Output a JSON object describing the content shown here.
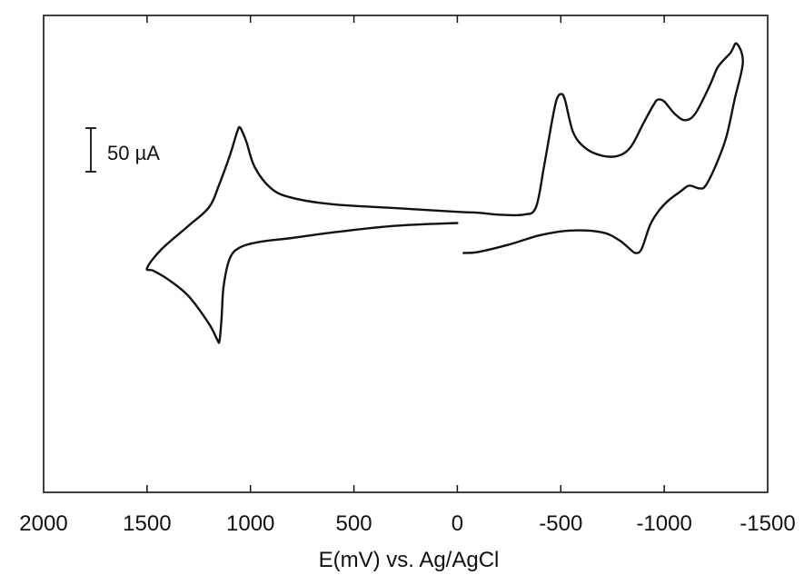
{
  "chart_data": {
    "type": "line",
    "title": "",
    "xlabel": "E(mV) vs. Ag/AgCl",
    "ylabel": "",
    "x_axis_reversed": true,
    "xlim": [
      2000,
      -1500
    ],
    "ylim": [
      -280,
      230
    ],
    "x_ticks": [
      2000,
      1500,
      1000,
      500,
      0,
      -500,
      -1000,
      -1500
    ],
    "x_tick_labels": [
      "2000",
      "1500",
      "1000",
      "500",
      "0",
      "-500",
      "-1000",
      "-1500"
    ],
    "y_ticks_shown": false,
    "grid": false,
    "legend": "none",
    "scale_bar": {
      "label": "50 µA",
      "value": 50,
      "unit": "µA"
    },
    "series": [
      {
        "points": [
          [
            0,
            8
          ],
          [
            300,
            5
          ],
          [
            600,
            -2
          ],
          [
            800,
            -8
          ],
          [
            950,
            -12
          ],
          [
            1050,
            -18
          ],
          [
            1100,
            -30
          ],
          [
            1130,
            -60
          ],
          [
            1140,
            -95
          ],
          [
            1150,
            -118
          ],
          [
            1160,
            -117
          ],
          [
            1200,
            -100
          ],
          [
            1300,
            -70
          ],
          [
            1400,
            -52
          ],
          [
            1470,
            -43
          ],
          [
            1500,
            -40
          ],
          [
            1430,
            -20
          ],
          [
            1300,
            5
          ],
          [
            1200,
            25
          ],
          [
            1150,
            50
          ],
          [
            1100,
            80
          ],
          [
            1065,
            105
          ],
          [
            1050,
            110
          ],
          [
            1020,
            95
          ],
          [
            980,
            68
          ],
          [
            900,
            45
          ],
          [
            800,
            35
          ],
          [
            600,
            28
          ],
          [
            300,
            24
          ],
          [
            0,
            20
          ],
          [
            -100,
            19
          ],
          [
            -200,
            17
          ],
          [
            -320,
            17
          ],
          [
            -380,
            25
          ],
          [
            -420,
            70
          ],
          [
            -460,
            120
          ],
          [
            -480,
            140
          ],
          [
            -500,
            146
          ],
          [
            -520,
            140
          ],
          [
            -560,
            105
          ],
          [
            -620,
            88
          ],
          [
            -700,
            80
          ],
          [
            -780,
            80
          ],
          [
            -840,
            90
          ],
          [
            -900,
            115
          ],
          [
            -950,
            135
          ],
          [
            -970,
            140
          ],
          [
            -1000,
            138
          ],
          [
            -1050,
            125
          ],
          [
            -1100,
            118
          ],
          [
            -1150,
            125
          ],
          [
            -1220,
            155
          ],
          [
            -1260,
            175
          ],
          [
            -1320,
            190
          ],
          [
            -1350,
            200
          ],
          [
            -1380,
            180
          ],
          [
            -1340,
            140
          ],
          [
            -1300,
            100
          ],
          [
            -1250,
            70
          ],
          [
            -1200,
            48
          ],
          [
            -1170,
            45
          ],
          [
            -1120,
            48
          ],
          [
            -1080,
            42
          ],
          [
            -1020,
            32
          ],
          [
            -970,
            20
          ],
          [
            -930,
            5
          ],
          [
            -890,
            -20
          ],
          [
            -860,
            -24
          ],
          [
            -830,
            -19
          ],
          [
            -780,
            -10
          ],
          [
            -700,
            -2
          ],
          [
            -550,
            0
          ],
          [
            -400,
            -5
          ],
          [
            -250,
            -15
          ],
          [
            -100,
            -23
          ],
          [
            -30,
            -24
          ]
        ]
      }
    ]
  }
}
